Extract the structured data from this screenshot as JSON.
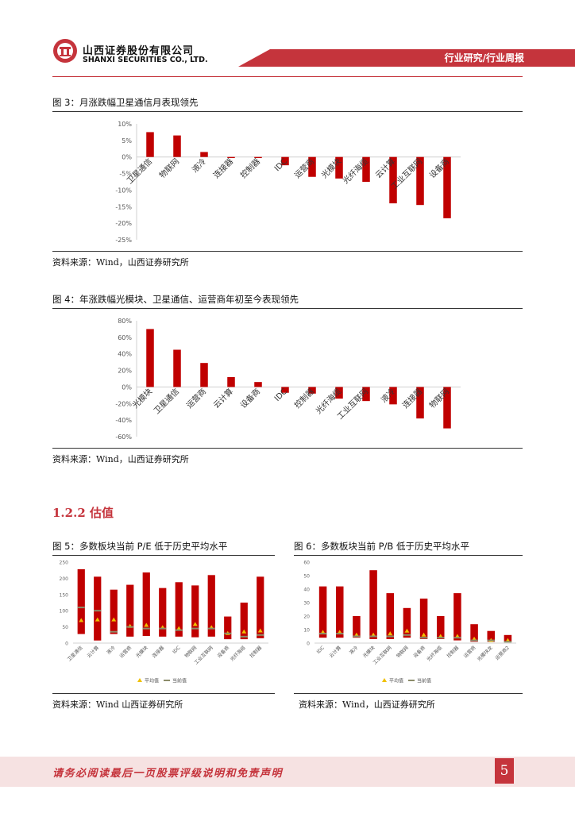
{
  "header": {
    "company_cn": "山西证券股份有限公司",
    "company_en": "SHANXI SECURITIES CO., LTD.",
    "category": "行业研究/行业周报"
  },
  "figure3": {
    "caption": "图 3：月涨跌幅卫星通信月表现领先",
    "source": "资料来源：Wind，山西证券研究所",
    "chart_data": {
      "type": "bar",
      "categories": [
        "卫星通信",
        "物联网",
        "液冷",
        "连接器",
        "控制器",
        "IDC",
        "运营商",
        "光模块",
        "光纤海缆",
        "云计算",
        "工业互联网",
        "设备商"
      ],
      "values": [
        7.5,
        6.5,
        1.5,
        -0.3,
        -0.3,
        -2.5,
        -6,
        -6.5,
        -7.5,
        -14,
        -14.5,
        -18.5
      ],
      "ylim": [
        -25,
        10
      ],
      "yticks": [
        "10%",
        "5%",
        "0%",
        "-5%",
        "-10%",
        "-15%",
        "-20%",
        "-25%"
      ],
      "ytick_values": [
        10,
        5,
        0,
        -5,
        -10,
        -15,
        -20,
        -25
      ],
      "color": "#c00000"
    }
  },
  "figure4": {
    "caption": "图 4：年涨跌幅光模块、卫星通信、运营商年初至今表现领先",
    "source": "资料来源：Wind，山西证券研究所",
    "chart_data": {
      "type": "bar",
      "categories": [
        "光模块",
        "卫星通信",
        "运营商",
        "云计算",
        "设备商",
        "IDC",
        "控制器",
        "光纤海缆",
        "工业互联网",
        "液冷",
        "连接器",
        "物联网"
      ],
      "values": [
        70,
        45,
        29,
        12,
        6,
        -7,
        -8,
        -14,
        -17,
        -21,
        -38,
        -50
      ],
      "ylim": [
        -60,
        80
      ],
      "yticks": [
        "80%",
        "60%",
        "40%",
        "20%",
        "0%",
        "-20%",
        "-40%",
        "-60%"
      ],
      "ytick_values": [
        80,
        60,
        40,
        20,
        0,
        -20,
        -40,
        -60
      ],
      "color": "#c00000"
    }
  },
  "section": {
    "heading": "1.2.2  估值"
  },
  "figure5": {
    "caption": "图 5：多数板块当前 P/E 低于历史平均水平",
    "source": "资料来源：Wind 山西证券研究所",
    "chart_data": {
      "type": "bar",
      "categories": [
        "卫星通信",
        "云计算",
        "液冷",
        "运营商",
        "光模块",
        "连接器",
        "IDC",
        "物联网",
        "工业互联网",
        "设备商",
        "光纤海缆",
        "控制器"
      ],
      "range_low": [
        28,
        8,
        28,
        20,
        22,
        20,
        20,
        18,
        20,
        12,
        12,
        15
      ],
      "range_high": [
        228,
        205,
        165,
        180,
        218,
        170,
        188,
        178,
        210,
        82,
        125,
        205
      ],
      "series": [
        {
          "name": "平均值",
          "values": [
            70,
            72,
            72,
            52,
            55,
            48,
            45,
            58,
            48,
            30,
            35,
            38
          ]
        },
        {
          "name": "当前值",
          "values": [
            110,
            100,
            35,
            50,
            45,
            45,
            40,
            45,
            45,
            30,
            20,
            25
          ]
        }
      ],
      "ylim": [
        0,
        250
      ],
      "yticks": [
        "250",
        "200",
        "150",
        "100",
        "50",
        "0"
      ],
      "ytick_values": [
        250,
        200,
        150,
        100,
        50,
        0
      ],
      "colors": {
        "bar": "#c00000",
        "avg": "#f0c000",
        "current": "#8c8c6a"
      }
    }
  },
  "figure6": {
    "caption": "图 6：多数板块当前 P/B 低于历史平均水平",
    "source": "资料来源：Wind，山西证券研究所",
    "chart_data": {
      "type": "bar",
      "categories": [
        "IDC",
        "云计算",
        "液冷",
        "光模块",
        "工业互联网",
        "物联网",
        "设备商",
        "光纤海缆",
        "控制器",
        "运营商",
        "光模块龙",
        "运营商2"
      ],
      "range_low": [
        4,
        4,
        4,
        3,
        3,
        4,
        3,
        3,
        2,
        1,
        1,
        1
      ],
      "range_high": [
        42,
        42,
        20,
        54,
        37,
        26,
        33,
        20,
        37,
        14,
        9,
        6
      ],
      "series": [
        {
          "name": "平均值",
          "values": [
            8,
            8,
            6,
            6,
            7,
            9,
            6,
            5,
            5,
            3,
            2,
            2
          ]
        },
        {
          "name": "当前值",
          "values": [
            7,
            7,
            5,
            5,
            5,
            6,
            4,
            4,
            4,
            2,
            2,
            1
          ]
        }
      ],
      "ylim": [
        0,
        60
      ],
      "yticks": [
        "60",
        "50",
        "40",
        "30",
        "20",
        "10",
        "0"
      ],
      "ytick_values": [
        60,
        50,
        40,
        30,
        20,
        10,
        0
      ],
      "colors": {
        "bar": "#c00000",
        "avg": "#f0c000",
        "current": "#8c8c6a"
      }
    }
  },
  "footer": {
    "disclaimer": "请务必阅读最后一页股票评级说明和免责声明",
    "page": "5"
  }
}
